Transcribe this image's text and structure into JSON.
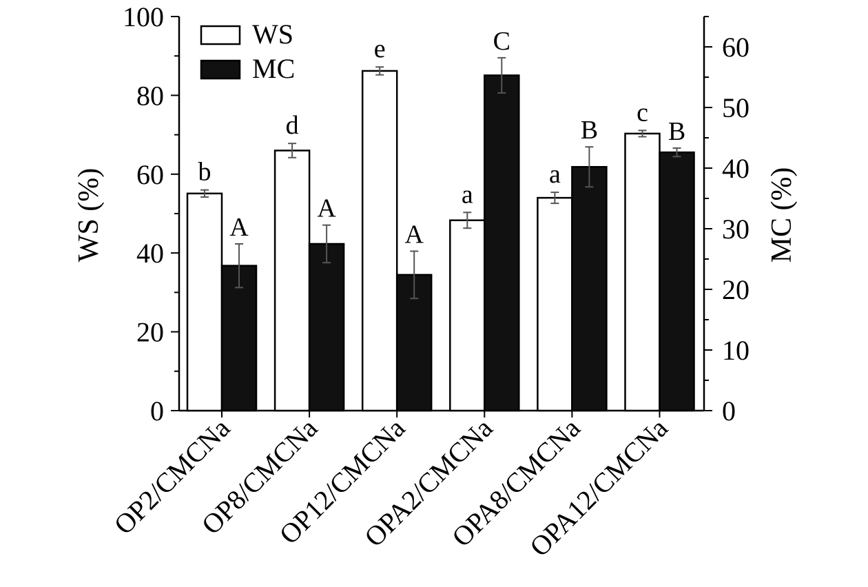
{
  "chart_data": {
    "type": "bar",
    "categories": [
      "OP2/CMCNa",
      "OP8/CMCNa",
      "OP12/CMCNa",
      "OPA2/CMCNa",
      "OPA8/CMCNa",
      "OPA12/CMCNa"
    ],
    "series": [
      {
        "name": "WS",
        "axis": "left",
        "color": "#ffffff",
        "values": [
          55.1,
          66.0,
          86.2,
          48.3,
          54.0,
          70.3
        ],
        "errors": [
          0.9,
          1.8,
          1.0,
          2.0,
          1.4,
          0.8
        ],
        "letters": [
          "b",
          "d",
          "e",
          "a",
          "a",
          "c"
        ]
      },
      {
        "name": "MC",
        "axis": "right",
        "color": "#111111",
        "values": [
          23.9,
          27.5,
          22.4,
          55.3,
          40.2,
          42.6
        ],
        "errors": [
          3.6,
          3.1,
          3.9,
          2.9,
          3.3,
          0.7
        ],
        "letters": [
          "A",
          "A",
          "A",
          "C",
          "B",
          "B"
        ]
      }
    ],
    "ylabel": "WS (%)",
    "ylim": [
      0,
      100
    ],
    "yticks": [
      0,
      20,
      40,
      60,
      80,
      100
    ],
    "y2label": "MC (%)",
    "y2lim": [
      0,
      65
    ],
    "y2ticks": [
      0,
      10,
      20,
      30,
      40,
      50,
      60
    ],
    "legend": {
      "position": "top-left",
      "entries": [
        "WS",
        "MC"
      ]
    },
    "grid": false
  }
}
